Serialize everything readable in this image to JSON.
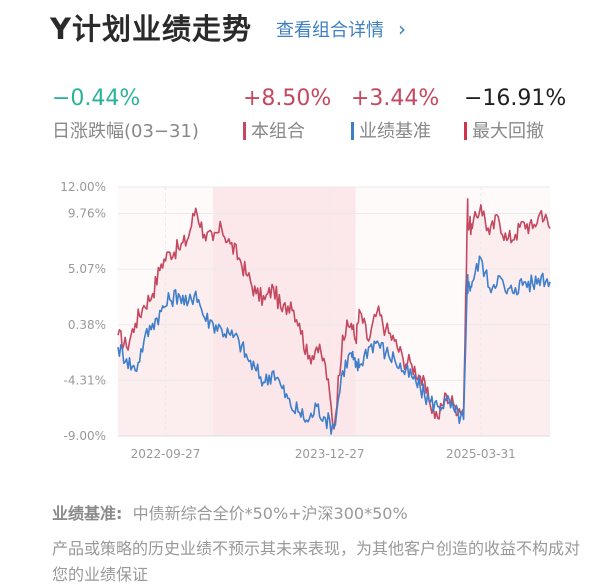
{
  "header": {
    "title": "Y计划业绩走势",
    "detail_link": "查看组合详情"
  },
  "stats": {
    "daily_change": "−0.44%",
    "daily_label": "日涨跌幅(03−31)",
    "portfolio_value": "+8.50%",
    "portfolio_label": "本组合",
    "benchmark_value": "+3.44%",
    "benchmark_label": "业绩基准",
    "drawdown_value": "−16.91%",
    "drawdown_label": "最大回撤"
  },
  "colors": {
    "portfolio": "#c44860",
    "benchmark": "#3f7fc9",
    "drawdown": "#d0344a",
    "up": "#2bb39a"
  },
  "chart_data": {
    "type": "line",
    "y_ticks": [
      "12.00%",
      "9.76%",
      "5.07%",
      "0.38%",
      "-4.31%",
      "-9.00%"
    ],
    "y_tick_values": [
      12.0,
      9.76,
      5.07,
      0.38,
      -4.31,
      -9.0
    ],
    "ylim": [
      -9.0,
      12.0
    ],
    "x_ticks": [
      "2022-09-27",
      "2023-12-27",
      "2025-03-31"
    ],
    "x_tick_positions": [
      0.11,
      0.49,
      0.84
    ],
    "grid": true,
    "series": [
      {
        "name": "本组合",
        "color": "#c44860",
        "x": [
          0,
          0.02,
          0.04,
          0.06,
          0.08,
          0.1,
          0.12,
          0.14,
          0.16,
          0.18,
          0.2,
          0.22,
          0.24,
          0.26,
          0.28,
          0.3,
          0.32,
          0.34,
          0.36,
          0.38,
          0.4,
          0.42,
          0.44,
          0.46,
          0.48,
          0.5,
          0.52,
          0.54,
          0.55,
          0.56,
          0.58,
          0.6,
          0.62,
          0.64,
          0.66,
          0.68,
          0.7,
          0.72,
          0.74,
          0.76,
          0.78,
          0.8,
          0.8095,
          0.81,
          0.82,
          0.84,
          0.86,
          0.88,
          0.9,
          0.92,
          0.94,
          0.96,
          0.98,
          1.0
        ],
        "values": [
          -0.5,
          -1.5,
          0.5,
          2.0,
          3.0,
          5.5,
          6.5,
          6.8,
          7.5,
          10.2,
          8.0,
          7.5,
          8.5,
          7.2,
          6.0,
          4.5,
          3.0,
          2.5,
          3.5,
          1.5,
          2.3,
          0.5,
          -2.5,
          -1.5,
          -3.0,
          -8.4,
          -0.5,
          0.5,
          -0.9,
          1.5,
          -1.0,
          1.5,
          0.0,
          -1.0,
          -2.5,
          -3.0,
          -4.0,
          -6.0,
          -7.5,
          -5.5,
          -6.5,
          -6.7,
          11.0,
          9.0,
          8.5,
          10.5,
          8.0,
          9.5,
          7.5,
          8.0,
          9.0,
          8.5,
          10.0,
          8.5
        ]
      },
      {
        "name": "业绩基准",
        "color": "#3f7fc9",
        "x": [
          0,
          0.02,
          0.04,
          0.06,
          0.08,
          0.1,
          0.12,
          0.14,
          0.16,
          0.18,
          0.2,
          0.22,
          0.24,
          0.26,
          0.28,
          0.3,
          0.32,
          0.34,
          0.36,
          0.38,
          0.4,
          0.42,
          0.44,
          0.46,
          0.48,
          0.5,
          0.52,
          0.54,
          0.55,
          0.56,
          0.58,
          0.6,
          0.62,
          0.64,
          0.66,
          0.68,
          0.7,
          0.72,
          0.74,
          0.76,
          0.78,
          0.8,
          0.8095,
          0.81,
          0.82,
          0.84,
          0.86,
          0.88,
          0.9,
          0.92,
          0.94,
          0.96,
          0.98,
          1.0
        ],
        "values": [
          -1.5,
          -2.5,
          -3.5,
          -1.0,
          0.5,
          1.5,
          2.5,
          3.0,
          2.0,
          3.2,
          1.0,
          0.5,
          0.0,
          -0.5,
          -1.0,
          -2.5,
          -3.5,
          -4.5,
          -3.5,
          -5.0,
          -6.5,
          -7.0,
          -7.8,
          -6.5,
          -7.5,
          -8.3,
          -3.5,
          -2.0,
          -3.2,
          -3.0,
          -1.5,
          -1.0,
          -2.0,
          -2.5,
          -3.5,
          -4.0,
          -5.0,
          -6.0,
          -6.5,
          -6.0,
          -7.0,
          -7.6,
          4.5,
          3.5,
          4.0,
          6.0,
          3.5,
          4.5,
          3.0,
          3.5,
          4.0,
          3.8,
          4.5,
          4.0
        ]
      }
    ]
  },
  "footer": {
    "benchmark_key": "业绩基准:",
    "benchmark_formula": "中债新综合全价*50%+沪深300*50%",
    "disclaimer": "产品或策略的历史业绩不预示其未来表现，为其他客户创造的收益不构成对您的业绩保证"
  }
}
